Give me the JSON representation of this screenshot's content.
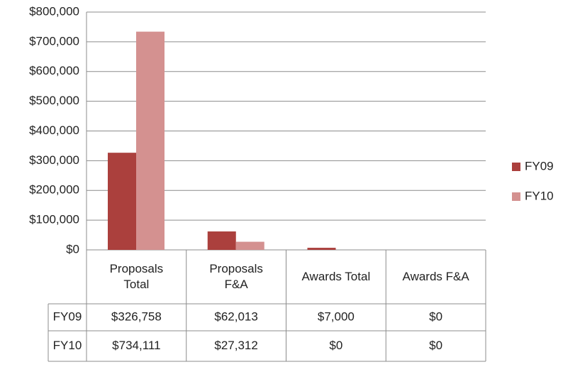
{
  "chart_data": {
    "type": "bar",
    "categories": [
      "Proposals Total",
      "Proposals F&A",
      "Awards Total",
      "Awards F&A"
    ],
    "series": [
      {
        "name": "FY09",
        "color": "#ab403d",
        "values": [
          326758,
          62013,
          7000,
          0
        ],
        "value_labels": [
          "$326,758",
          "$62,013",
          "$7,000",
          "$0"
        ]
      },
      {
        "name": "FY10",
        "color": "#d49190",
        "values": [
          734111,
          27312,
          0,
          0
        ],
        "value_labels": [
          "$734,111",
          "$27,312",
          "$0",
          "$0"
        ]
      }
    ],
    "ylim": [
      0,
      800000
    ],
    "yticks": [
      {
        "value": 0,
        "label": "$0"
      },
      {
        "value": 100000,
        "label": "$100,000"
      },
      {
        "value": 200000,
        "label": "$200,000"
      },
      {
        "value": 300000,
        "label": "$300,000"
      },
      {
        "value": 400000,
        "label": "$400,000"
      },
      {
        "value": 500000,
        "label": "$500,000"
      },
      {
        "value": 600000,
        "label": "$600,000"
      },
      {
        "value": 700000,
        "label": "$700,000"
      },
      {
        "value": 800000,
        "label": "$800,000"
      }
    ],
    "grid": true,
    "legend": "right",
    "data_table": true
  }
}
